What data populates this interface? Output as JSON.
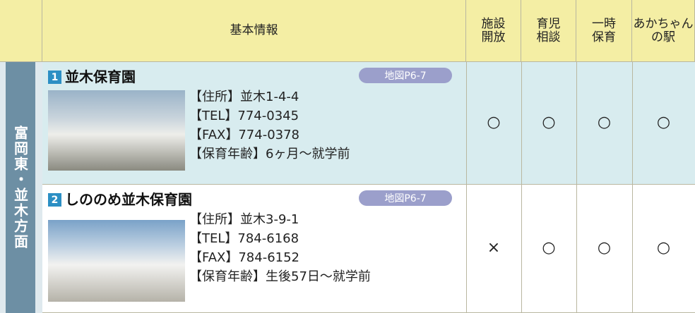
{
  "table": {
    "columns": [
      {
        "lines": [
          "基本情報"
        ]
      },
      {
        "lines": [
          "施設",
          "開放"
        ]
      },
      {
        "lines": [
          "育児",
          "相談"
        ]
      },
      {
        "lines": [
          "一時",
          "保育"
        ]
      },
      {
        "lines": [
          "あかちゃん",
          "の駅"
        ]
      }
    ],
    "region": "富岡東・並木方面",
    "rows": [
      {
        "number": "1",
        "name": "並木保育園",
        "map": "地図P6-7",
        "details": [
          "【住所】並木1-4-4",
          "【TEL】774-0345",
          "【FAX】774-0378",
          "【保育年齢】6ヶ月〜就学前"
        ],
        "marks": [
          "○",
          "○",
          "○",
          "○"
        ]
      },
      {
        "number": "2",
        "name": "しののめ並木保育園",
        "map": "地図P6-7",
        "details": [
          "【住所】並木3-9-1",
          "【TEL】784-6168",
          "【FAX】784-6152",
          "【保育年齢】生後57日〜就学前"
        ],
        "marks": [
          "×",
          "○",
          "○",
          "○"
        ]
      }
    ]
  }
}
